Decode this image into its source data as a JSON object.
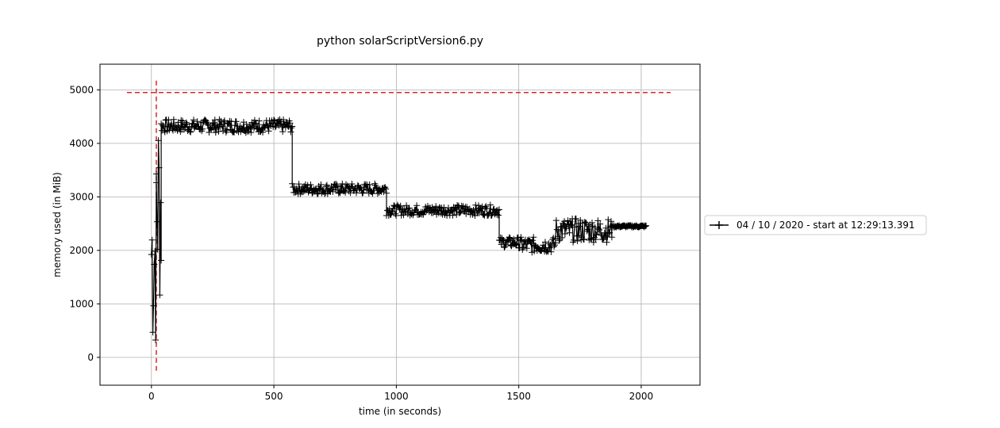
{
  "chart_data": {
    "type": "line",
    "title": "python solarScriptVersion6.py",
    "xlabel": "time (in seconds)",
    "ylabel": "memory used (in MiB)",
    "xlim": [
      -210,
      2240
    ],
    "ylim": [
      -520,
      5480
    ],
    "xticks": [
      0,
      500,
      1000,
      1500,
      2000
    ],
    "yticks": [
      0,
      1000,
      2000,
      3000,
      4000,
      5000
    ],
    "grid": true,
    "legend": {
      "placement": "right-outside"
    },
    "series": [
      {
        "name": "04 / 10 / 2020 - start at 12:29:13.391",
        "color": "#000000",
        "marker": "+",
        "segments": [
          {
            "x_start": 0,
            "x_end": 20,
            "y_min": 20,
            "y_max": 3900
          },
          {
            "x_start": 20,
            "x_end": 40,
            "y_min": 850,
            "y_max": 4950
          },
          {
            "x_start": 40,
            "x_end": 575,
            "y_min": 4200,
            "y_max": 4450
          },
          {
            "x_start": 575,
            "x_end": 960,
            "y_min": 3050,
            "y_max": 3250
          },
          {
            "x_start": 960,
            "x_end": 1420,
            "y_min": 2650,
            "y_max": 2850
          },
          {
            "x_start": 1420,
            "x_end": 1500,
            "y_min": 2050,
            "y_max": 2250
          },
          {
            "x_start": 1500,
            "x_end": 1650,
            "y_min": 1950,
            "y_max": 2250
          },
          {
            "x_start": 1650,
            "x_end": 1880,
            "y_min": 2150,
            "y_max": 2600
          },
          {
            "x_start": 1880,
            "x_end": 2020,
            "y_min": 2430,
            "y_max": 2470
          }
        ]
      }
    ],
    "reference_lines": [
      {
        "orientation": "horizontal",
        "value": 4950,
        "from": -100,
        "to": 2120,
        "color": "#d62728",
        "style": "dashed"
      },
      {
        "orientation": "vertical",
        "value": 20,
        "from": -250,
        "to": 5200,
        "color": "#d62728",
        "style": "dashed"
      }
    ]
  }
}
